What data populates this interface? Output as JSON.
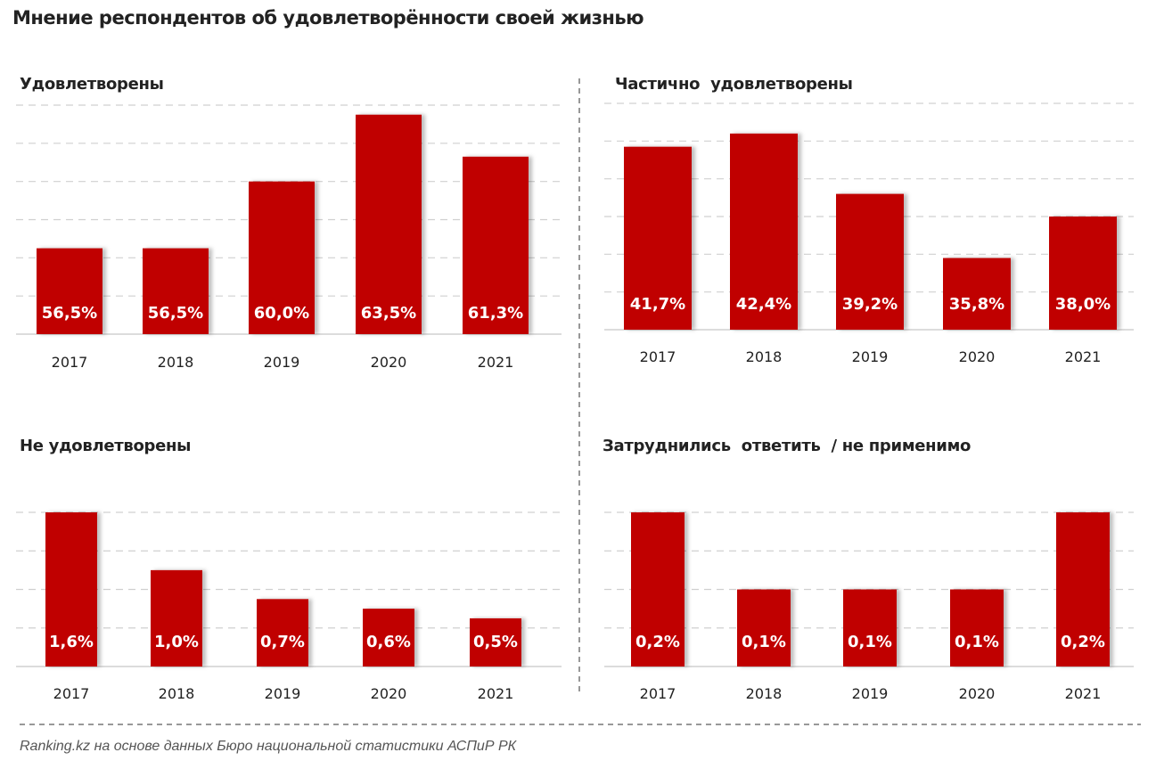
{
  "title": "Мнение респондентов об удовлетворённости своей жизнью",
  "source": "Ranking.kz на основе данных Бюро национальной статистики АСПиР РК",
  "colors": {
    "bar": "#c00000",
    "grid": "#d0d0d0",
    "text": "#222222"
  },
  "chart_data": [
    {
      "type": "bar",
      "title": "Удовлетворены",
      "categories": [
        "2017",
        "2018",
        "2019",
        "2020",
        "2021"
      ],
      "values": [
        56.5,
        56.5,
        60.0,
        63.5,
        61.3
      ],
      "labels": [
        "56,5%",
        "56,5%",
        "60,0%",
        "63,5%",
        "61,3%"
      ],
      "ylim": [
        52,
        64
      ],
      "grid_step": 2,
      "grid": true
    },
    {
      "type": "bar",
      "title": "Частично  удовлетворены",
      "categories": [
        "2017",
        "2018",
        "2019",
        "2020",
        "2021"
      ],
      "values": [
        41.7,
        42.4,
        39.2,
        35.8,
        38.0
      ],
      "labels": [
        "41,7%",
        "42,4%",
        "39,2%",
        "35,8%",
        "38,0%"
      ],
      "ylim": [
        32,
        44
      ],
      "grid_step": 2,
      "grid": true
    },
    {
      "type": "bar",
      "title": "Не удовлетворены",
      "categories": [
        "2017",
        "2018",
        "2019",
        "2020",
        "2021"
      ],
      "values": [
        1.6,
        1.0,
        0.7,
        0.6,
        0.5
      ],
      "labels": [
        "1,6%",
        "1,0%",
        "0,7%",
        "0,6%",
        "0,5%"
      ],
      "ylim": [
        0,
        1.6
      ],
      "grid_step": 0.4,
      "grid": true
    },
    {
      "type": "bar",
      "title": "Затруднились  ответить  / не применимо",
      "categories": [
        "2017",
        "2018",
        "2019",
        "2020",
        "2021"
      ],
      "values": [
        0.2,
        0.1,
        0.1,
        0.1,
        0.2
      ],
      "labels": [
        "0,2%",
        "0,1%",
        "0,1%",
        "0,1%",
        "0,2%"
      ],
      "ylim": [
        0,
        0.2
      ],
      "grid_step": 0.05,
      "grid": true
    }
  ]
}
